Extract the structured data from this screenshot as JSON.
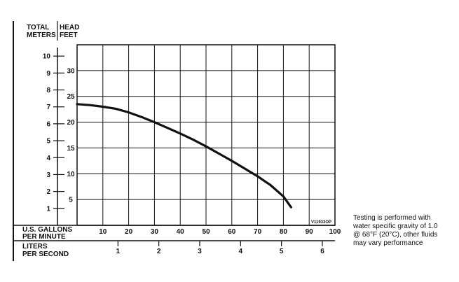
{
  "chart_data": {
    "type": "line",
    "axis_headers": {
      "meters": [
        "TOTAL",
        "METERS"
      ],
      "feet": [
        "HEAD",
        "FEET"
      ],
      "gpm": [
        "U.S. GALLONS",
        "PER MINUTE"
      ],
      "lps": [
        "LITERS",
        "PER SECOND"
      ]
    },
    "x_unit": "U.S. gallons per minute",
    "y_unit": "head feet",
    "xlim": [
      0,
      100
    ],
    "ylim": [
      0,
      35
    ],
    "gpm_ticks": [
      10,
      20,
      30,
      40,
      50,
      60,
      70,
      80,
      90,
      100
    ],
    "feet_ticks": [
      5,
      10,
      15,
      20,
      25,
      30
    ],
    "meters_ticks": [
      1,
      2,
      3,
      4,
      5,
      6,
      7,
      8,
      9,
      10
    ],
    "lps_ticks": [
      1,
      2,
      3,
      4,
      5,
      6
    ],
    "grid": true,
    "series": [
      {
        "x": [
          0,
          5,
          10,
          15,
          20,
          25,
          30,
          35,
          40,
          45,
          50,
          55,
          60,
          65,
          70,
          75,
          80,
          83
        ],
        "y": [
          23.5,
          23.3,
          23.0,
          22.6,
          21.9,
          21.0,
          20.0,
          18.9,
          17.8,
          16.6,
          15.3,
          13.9,
          12.5,
          11.0,
          9.5,
          7.8,
          5.6,
          3.5
        ]
      }
    ],
    "code": "V11933OP"
  },
  "note": {
    "lines": [
      "Testing is performed with",
      "water specific gravity of 1.0",
      "@ 68°F (20°C), other fluids",
      "may vary performance"
    ]
  }
}
